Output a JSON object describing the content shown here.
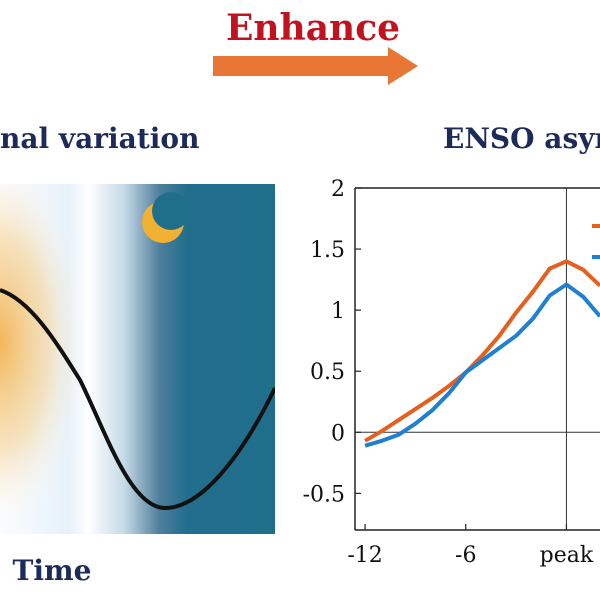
{
  "header": {
    "enhance_label": "Enhance",
    "arrow_color": "#e87634",
    "label_color": "#c1121f"
  },
  "left_panel": {
    "title": "nal variation",
    "title_color": "#1c2b5a",
    "x_label": "Time",
    "moon_icon": "crescent-moon-icon",
    "night_color": "#1f6f8b",
    "day_color": "#f2c36b",
    "curve_color": "#111111"
  },
  "right_panel": {
    "title": "ENSO asym",
    "title_color": "#1c2b5a"
  },
  "chart_data": {
    "type": "line",
    "x": [
      -12,
      -11,
      -10,
      -9,
      -8,
      -7,
      -6,
      -5,
      -4,
      -3,
      -2,
      -1,
      0,
      1,
      2
    ],
    "xlim": [
      -12.6,
      2
    ],
    "ylim": [
      -0.8,
      2
    ],
    "x_ticks": [
      {
        "value": -12,
        "label": "-12"
      },
      {
        "value": -6,
        "label": "-6"
      },
      {
        "value": 0,
        "label": "peak"
      }
    ],
    "y_ticks": [
      {
        "value": 2,
        "label": "2"
      },
      {
        "value": 1.5,
        "label": "1.5"
      },
      {
        "value": 1,
        "label": "1"
      },
      {
        "value": 0.5,
        "label": "0.5"
      },
      {
        "value": 0,
        "label": "0"
      },
      {
        "value": -0.5,
        "label": "-0.5"
      }
    ],
    "series": [
      {
        "color": "#e4601e",
        "values": [
          -0.07,
          0.01,
          0.1,
          0.19,
          0.28,
          0.38,
          0.49,
          0.63,
          0.79,
          0.98,
          1.15,
          1.34,
          1.4,
          1.33,
          1.2
        ]
      },
      {
        "color": "#1f7fd1",
        "values": [
          -0.11,
          -0.07,
          -0.02,
          0.07,
          0.18,
          0.32,
          0.49,
          0.59,
          0.69,
          0.79,
          0.93,
          1.12,
          1.21,
          1.11,
          0.95
        ]
      }
    ]
  }
}
